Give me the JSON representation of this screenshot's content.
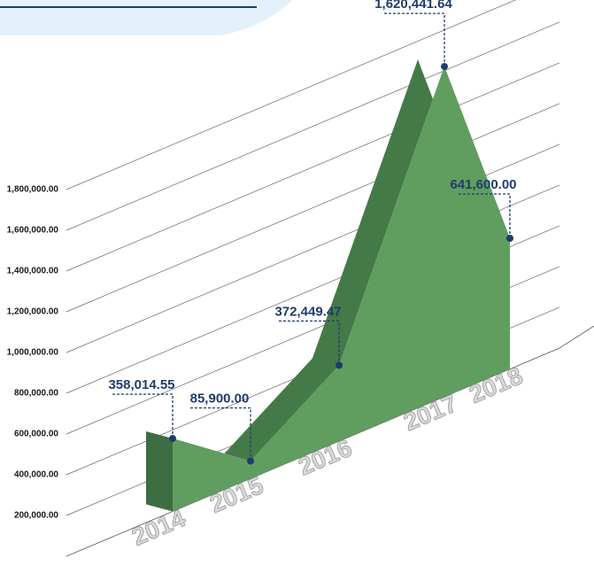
{
  "chart_data": {
    "type": "area3d",
    "categories": [
      "2014",
      "2015",
      "2016",
      "2017",
      "2018"
    ],
    "values": [
      358014.55,
      85900.0,
      372449.47,
      1620441.64,
      641600.0
    ],
    "value_labels": [
      "358,014.55",
      "85,900.00",
      "372,449.47",
      "1,620,441.64",
      "641,600.00"
    ],
    "color": "#5f9e5f",
    "ylim": [
      0,
      1800000
    ],
    "yticks": [
      {
        "value": 200000,
        "label": "200,000.00"
      },
      {
        "value": 400000,
        "label": "400,000.00"
      },
      {
        "value": 600000,
        "label": "600,000.00"
      },
      {
        "value": 800000,
        "label": "800,000.00"
      },
      {
        "value": 1000000,
        "label": "1,000,000.00"
      },
      {
        "value": 1200000,
        "label": "1,200,000.00"
      },
      {
        "value": 1400000,
        "label": "1,400,000.00"
      },
      {
        "value": 1600000,
        "label": "1,600,000.00"
      },
      {
        "value": 1800000,
        "label": "1,800,000.00"
      }
    ],
    "grid": true
  }
}
